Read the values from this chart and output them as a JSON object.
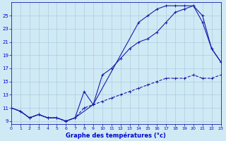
{
  "title": "Graphe des températures (°c)",
  "line1_x": [
    0,
    1,
    2,
    3,
    4,
    5,
    6,
    7,
    8,
    9,
    10,
    11,
    12,
    13,
    14,
    15,
    16,
    17,
    18,
    19,
    20,
    21,
    22,
    23
  ],
  "line1_y": [
    11,
    10.5,
    9.5,
    10,
    9.5,
    9.5,
    9,
    9.5,
    11,
    11.5,
    12,
    12.5,
    13,
    13.5,
    14,
    14.5,
    15,
    15.5,
    15.5,
    15.5,
    16,
    15.5,
    15.5,
    16
  ],
  "line2_x": [
    0,
    1,
    2,
    3,
    4,
    5,
    6,
    7,
    8,
    9,
    10,
    11,
    12,
    13,
    14,
    15,
    16,
    17,
    18,
    19,
    20,
    21,
    22,
    23
  ],
  "line2_y": [
    11,
    10.5,
    9.5,
    10,
    9.5,
    9.5,
    9,
    9.5,
    13.5,
    11.5,
    16,
    17,
    18.5,
    20,
    21,
    21.5,
    22.5,
    24,
    25.5,
    26,
    26.5,
    25,
    20,
    18
  ],
  "line3_x": [
    0,
    1,
    2,
    3,
    4,
    5,
    6,
    7,
    9,
    14,
    15,
    16,
    17,
    18,
    19,
    20,
    21,
    22,
    23
  ],
  "line3_y": [
    11,
    10.5,
    9.5,
    10,
    9.5,
    9.5,
    9,
    9.5,
    11.5,
    24,
    25,
    26,
    26.5,
    26.5,
    26.5,
    26.5,
    24,
    20,
    18
  ],
  "xlim": [
    0,
    23
  ],
  "ylim": [
    8.5,
    27
  ],
  "yticks": [
    9,
    11,
    13,
    15,
    17,
    19,
    21,
    23,
    25
  ],
  "xticks": [
    0,
    1,
    2,
    3,
    4,
    5,
    6,
    7,
    8,
    9,
    10,
    11,
    12,
    13,
    14,
    15,
    16,
    17,
    18,
    19,
    20,
    21,
    22,
    23
  ],
  "bg_color": "#d0eaf5",
  "grid_color": "#aaccdd",
  "line_color": "#1a1aaa",
  "title_color": "#0000cc"
}
